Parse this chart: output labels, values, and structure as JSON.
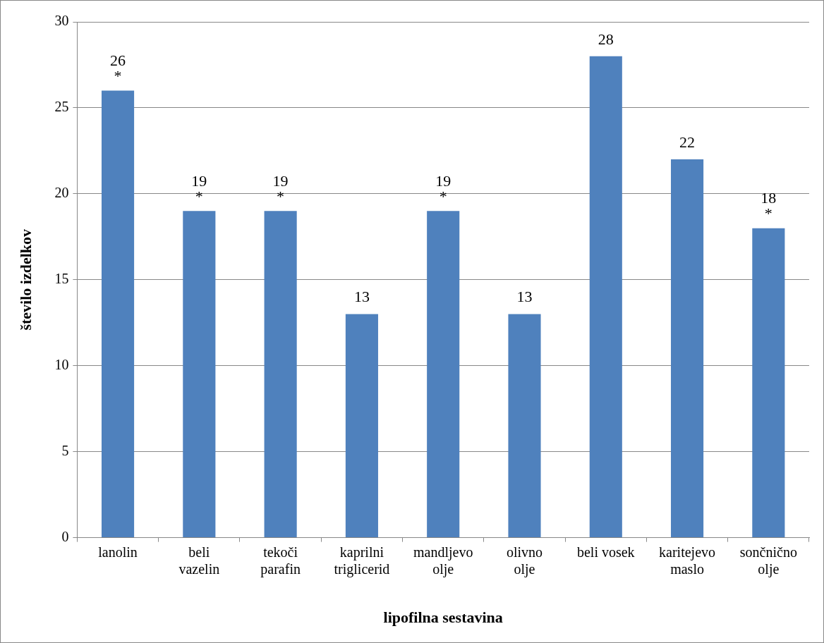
{
  "chart_data": {
    "type": "bar",
    "xlabel": "lipofilna sestavina",
    "ylabel": "število izdelkov",
    "categories": [
      "lanolin",
      "beli\nvazelin",
      "tekoči\nparafin",
      "kaprilni\ntriglicerid",
      "mandljevo\nolje",
      "olivno\nolje",
      "beli vosek",
      "karitejevo\nmaslo",
      "sončnično\nolje"
    ],
    "values": [
      26,
      19,
      19,
      13,
      19,
      13,
      28,
      22,
      18
    ],
    "color": "#4f81bd",
    "ylim": [
      0,
      30
    ],
    "yticks": [
      0,
      5,
      10,
      15,
      20,
      25,
      30
    ],
    "grid": "y",
    "legend": false,
    "data_labels": true,
    "annotations": [
      {
        "text": "*",
        "x": "lanolin",
        "y": 26
      },
      {
        "text": "*",
        "x": "beli\nvazelin",
        "y": 19
      },
      {
        "text": "*",
        "x": "tekoči\nparafin",
        "y": 19
      },
      {
        "text": "*",
        "x": "mandljevo\nolje",
        "y": 19
      },
      {
        "text": "*",
        "x": "sončnično\nolje",
        "y": 18
      }
    ]
  }
}
